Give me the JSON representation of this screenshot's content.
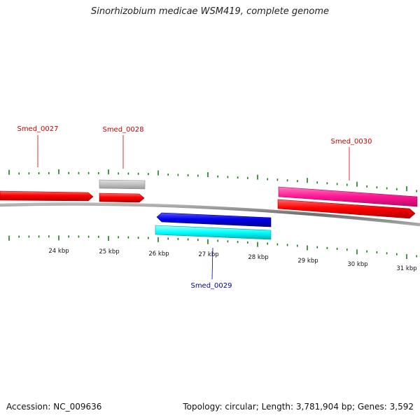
{
  "header": {
    "title": "Sinorhizobium medicae WSM419, complete genome"
  },
  "footer": {
    "accession": "Accession: NC_009636",
    "summary": "Topology: circular; Length: 3,781,904 bp; Genes: 3,592"
  },
  "axis": {
    "unit": "kbp",
    "ticks": [
      {
        "label": "24 kbp"
      },
      {
        "label": "25 kbp"
      },
      {
        "label": "26 kbp"
      },
      {
        "label": "27 kbp"
      },
      {
        "label": "28 kbp"
      },
      {
        "label": "29 kbp"
      },
      {
        "label": "30 kbp"
      },
      {
        "label": "31 kbp"
      }
    ]
  },
  "genes": [
    {
      "id": "Smed_0027",
      "label": "Smed_0027",
      "strand": "+",
      "color": "#ff0000"
    },
    {
      "id": "Smed_0028",
      "label": "Smed_0028",
      "strand": "+",
      "color": "#ff0000"
    },
    {
      "id": "Smed_0029",
      "label": "Smed_0029",
      "strand": "-",
      "color": "#0000ee"
    },
    {
      "id": "Smed_0030",
      "label": "Smed_0030",
      "strand": "+",
      "color": "#ff0000"
    }
  ],
  "colors": {
    "forward_gene": "#ff0000",
    "reverse_gene": "#0000ee",
    "feature_grey": "#c0c0c0",
    "feature_cyan": "#00ffff",
    "feature_magenta": "#ff1493",
    "backbone": "#777777",
    "ticks": "#1a7a1a",
    "forward_label": "#cc0000",
    "reverse_label": "#0000aa"
  }
}
